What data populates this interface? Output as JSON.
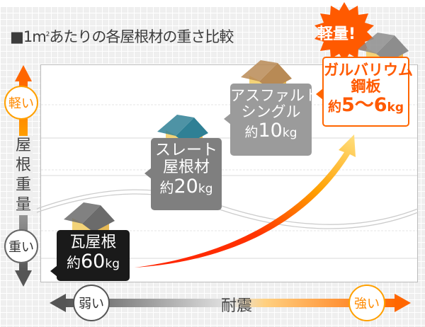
{
  "title": {
    "prefix": "■1m",
    "sup": "2",
    "rest": "あたりの各屋根材の重さ比較"
  },
  "y_axis": {
    "label": "屋根重量",
    "top_label": "軽い",
    "bottom_label": "重い"
  },
  "x_axis": {
    "label": "耐震",
    "left_label": "弱い",
    "right_label": "強い"
  },
  "badge": "軽量!",
  "materials": [
    {
      "name_lines": [
        "瓦屋根"
      ],
      "prefix": "約",
      "value": "60",
      "unit": "kg",
      "box_color": "#1a1a1a",
      "roof_color": "#6b6b6b"
    },
    {
      "name_lines": [
        "スレート",
        "屋根材"
      ],
      "prefix": "約",
      "value": "20",
      "unit": "kg",
      "box_color": "#7f7f7f",
      "roof_color": "#2f8095"
    },
    {
      "name_lines": [
        "アスファルト",
        "シングル"
      ],
      "prefix": "約",
      "value": "10",
      "unit": "kg",
      "box_color": "#9b9b9b",
      "roof_color": "#b88a55"
    },
    {
      "name_lines": [
        "ガルバリウム",
        "鋼板"
      ],
      "prefix": "約",
      "value": "5〜6",
      "unit": "kg",
      "box_color": "#ffffff",
      "roof_color": "#8d8d8d"
    }
  ],
  "colors": {
    "accent": "#ff6600",
    "light_accent": "#ff9900",
    "dark": "#555555"
  }
}
